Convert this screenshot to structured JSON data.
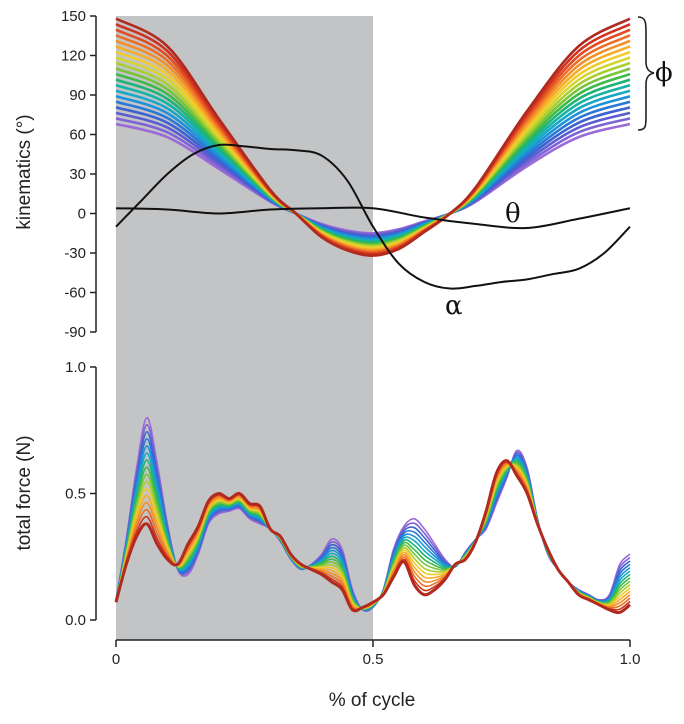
{
  "chart_data": [
    {
      "type": "line",
      "panel": "top",
      "ylabel": "kinematics (°)",
      "ylim": [
        -90,
        150
      ],
      "yticks": [
        "150",
        "120",
        "90",
        "60",
        "30",
        "0",
        "-30",
        "-60",
        "-90"
      ],
      "xlim": [
        0,
        1
      ],
      "shaded_region": [
        0,
        0.5
      ],
      "annotations": [
        "θ",
        "α",
        "ϕ"
      ],
      "series": [
        {
          "name": "α",
          "x": [
            0,
            0.05,
            0.1,
            0.15,
            0.2,
            0.25,
            0.3,
            0.35,
            0.4,
            0.45,
            0.5,
            0.55,
            0.6,
            0.65,
            0.7,
            0.75,
            0.8,
            0.85,
            0.9,
            0.95,
            1.0
          ],
          "y": [
            -10,
            10,
            30,
            45,
            52,
            51,
            49,
            48,
            44,
            25,
            -10,
            -38,
            -52,
            -57,
            -55,
            -52,
            -50,
            -46,
            -42,
            -30,
            -10
          ]
        },
        {
          "name": "θ",
          "x": [
            0,
            0.1,
            0.2,
            0.3,
            0.4,
            0.5,
            0.6,
            0.7,
            0.8,
            0.9,
            1.0
          ],
          "y": [
            4,
            3,
            0,
            3,
            4,
            4,
            -3,
            -8,
            -11,
            -4,
            4
          ]
        },
        {
          "name": "ϕ",
          "family": true,
          "curve_count": 20,
          "x": [
            0,
            0.1,
            0.2,
            0.3,
            0.35,
            0.4,
            0.45,
            0.5,
            0.55,
            0.6,
            0.65,
            0.7,
            0.8,
            0.9,
            1.0
          ],
          "y_highest": [
            148,
            127,
            72,
            18,
            0,
            -18,
            -28,
            -32,
            -27,
            -14,
            0,
            20,
            78,
            127,
            148
          ],
          "y_lowest": [
            68,
            58,
            34,
            9,
            0,
            -8,
            -13,
            -15,
            -12,
            -6,
            0,
            9,
            36,
            58,
            68
          ],
          "colors": [
            "#9b6ad8",
            "#7e63d6",
            "#5a5ccf",
            "#3d63d0",
            "#2a78d6",
            "#1d92d8",
            "#17a8c8",
            "#14b4a4",
            "#1fb376",
            "#3dba4a",
            "#77c43a",
            "#a9cf33",
            "#d4d52f",
            "#f1cc2c",
            "#f6ad2a",
            "#f38f28",
            "#ec6d26",
            "#e14c24",
            "#cf3220",
            "#b02a1e"
          ]
        }
      ]
    },
    {
      "type": "line",
      "panel": "bottom",
      "xlabel": "% of cycle",
      "ylabel": "total force (N)",
      "ylim": [
        0,
        1
      ],
      "yticks": [
        "1.0",
        "0.5",
        "0.0"
      ],
      "xlim": [
        0,
        1
      ],
      "xticks": [
        "0",
        "0.5",
        "1.0"
      ],
      "shaded_region": [
        0,
        0.5
      ],
      "series": [
        {
          "name": "force family (reddest)",
          "x": [
            0,
            0.02,
            0.04,
            0.06,
            0.08,
            0.1,
            0.12,
            0.14,
            0.16,
            0.18,
            0.2,
            0.22,
            0.24,
            0.26,
            0.28,
            0.3,
            0.32,
            0.34,
            0.36,
            0.38,
            0.4,
            0.42,
            0.44,
            0.46,
            0.48,
            0.5,
            0.52,
            0.54,
            0.56,
            0.58,
            0.6,
            0.62,
            0.64,
            0.66,
            0.68,
            0.7,
            0.72,
            0.74,
            0.76,
            0.78,
            0.8,
            0.82,
            0.84,
            0.86,
            0.88,
            0.9,
            0.92,
            0.94,
            0.96,
            0.98,
            1.0
          ],
          "y": [
            0.07,
            0.22,
            0.33,
            0.38,
            0.3,
            0.24,
            0.22,
            0.3,
            0.37,
            0.47,
            0.5,
            0.48,
            0.5,
            0.46,
            0.45,
            0.36,
            0.33,
            0.26,
            0.22,
            0.2,
            0.18,
            0.15,
            0.12,
            0.04,
            0.05,
            0.07,
            0.1,
            0.17,
            0.23,
            0.14,
            0.1,
            0.12,
            0.16,
            0.22,
            0.24,
            0.31,
            0.43,
            0.58,
            0.63,
            0.57,
            0.5,
            0.38,
            0.28,
            0.2,
            0.15,
            0.1,
            0.08,
            0.06,
            0.04,
            0.03,
            0.06
          ]
        },
        {
          "name": "force family (purplest)",
          "x": [
            0,
            0.02,
            0.04,
            0.06,
            0.08,
            0.1,
            0.12,
            0.14,
            0.16,
            0.18,
            0.2,
            0.22,
            0.24,
            0.26,
            0.28,
            0.3,
            0.32,
            0.34,
            0.36,
            0.38,
            0.4,
            0.42,
            0.44,
            0.46,
            0.48,
            0.5,
            0.52,
            0.54,
            0.56,
            0.58,
            0.6,
            0.62,
            0.64,
            0.66,
            0.68,
            0.7,
            0.72,
            0.74,
            0.76,
            0.78,
            0.8,
            0.82,
            0.84,
            0.86,
            0.88,
            0.9,
            0.92,
            0.94,
            0.96,
            0.98,
            1.0
          ],
          "y": [
            0.08,
            0.32,
            0.6,
            0.8,
            0.62,
            0.38,
            0.2,
            0.18,
            0.26,
            0.38,
            0.42,
            0.43,
            0.44,
            0.4,
            0.38,
            0.36,
            0.31,
            0.24,
            0.2,
            0.22,
            0.26,
            0.32,
            0.28,
            0.12,
            0.04,
            0.05,
            0.12,
            0.28,
            0.37,
            0.4,
            0.36,
            0.3,
            0.24,
            0.21,
            0.27,
            0.32,
            0.36,
            0.46,
            0.56,
            0.67,
            0.6,
            0.4,
            0.26,
            0.2,
            0.15,
            0.12,
            0.1,
            0.08,
            0.1,
            0.22,
            0.26
          ]
        }
      ]
    }
  ]
}
